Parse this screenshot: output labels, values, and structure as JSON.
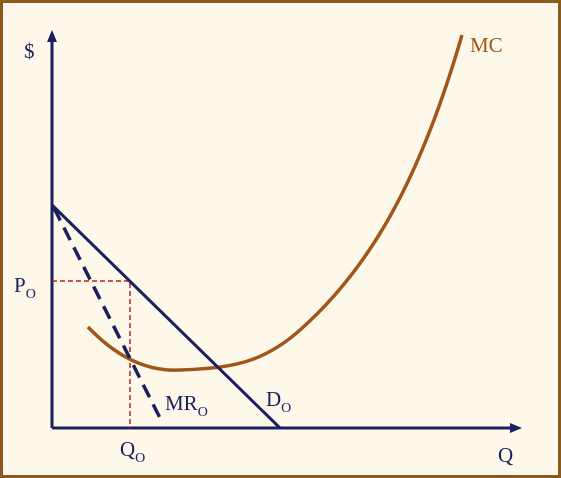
{
  "axes": {
    "y_label": "$",
    "x_label": "Q"
  },
  "curves": {
    "mc": {
      "label": "MC"
    },
    "demand": {
      "label": {
        "main": "D",
        "sub": "O"
      }
    },
    "marginal_revenue": {
      "label": {
        "main": "MR",
        "sub": "O"
      }
    }
  },
  "markers": {
    "price": {
      "main": "P",
      "sub": "O"
    },
    "quantity": {
      "main": "Q",
      "sub": "O"
    }
  }
}
